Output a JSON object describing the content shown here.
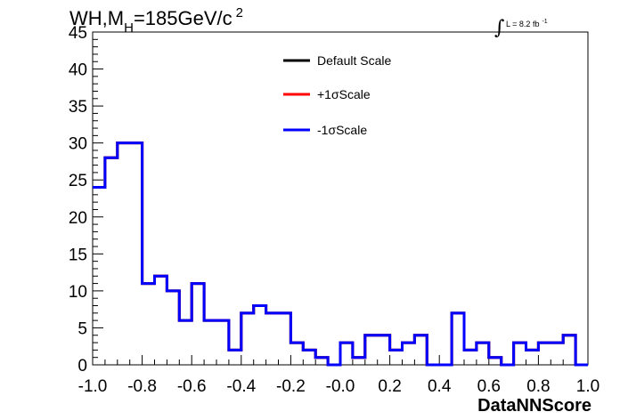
{
  "chart_data": {
    "type": "line",
    "title": {
      "main": "WH,M",
      "subscript": "H",
      "value": "=185GeV/c",
      "superscript": "2"
    },
    "luminosity": {
      "integral_symbol": "∫",
      "text": "L = 8.2 fb",
      "superscript": "-1"
    },
    "xlabel": "DataNNScore",
    "ylabel": "",
    "xlim": [
      -1.0,
      1.0
    ],
    "ylim": [
      0,
      45
    ],
    "x_ticks": [
      "-1.0",
      "-0.8",
      "-0.6",
      "-0.4",
      "-0.2",
      "-0.0",
      "0.2",
      "0.4",
      "0.6",
      "0.8",
      "1.0"
    ],
    "y_ticks": [
      "0",
      "5",
      "10",
      "15",
      "20",
      "25",
      "30",
      "35",
      "40",
      "45"
    ],
    "grid": false,
    "legend_position": "top-center",
    "bins": {
      "low": -1.0,
      "high": 1.0,
      "count": 40
    },
    "series": [
      {
        "name": "Default Scale",
        "color": "#000000",
        "values": [
          24,
          28,
          30,
          30,
          11,
          12,
          10,
          6,
          11,
          6,
          6,
          2,
          7,
          8,
          7,
          7,
          3,
          2,
          1,
          0,
          3,
          1,
          4,
          4,
          2,
          3,
          4,
          0,
          0,
          7,
          2,
          3,
          1,
          0,
          3,
          2,
          3,
          3,
          4,
          0
        ]
      },
      {
        "name": "+1σScale",
        "color": "#ff0000",
        "values": [
          24,
          28,
          30,
          30,
          11,
          12,
          10,
          6,
          11,
          6,
          6,
          2,
          7,
          8,
          7,
          7,
          3,
          2,
          1,
          0,
          3,
          1,
          4,
          4,
          2,
          3,
          4,
          0,
          0,
          7,
          2,
          3,
          1,
          0,
          3,
          2,
          3,
          3,
          4,
          0
        ]
      },
      {
        "name": "-1σScale",
        "color": "#0000ff",
        "values": [
          24,
          28,
          30,
          30,
          11,
          12,
          10,
          6,
          11,
          6,
          6,
          2,
          7,
          8,
          7,
          7,
          3,
          2,
          1,
          0,
          3,
          1,
          4,
          4,
          2,
          3,
          4,
          0,
          0,
          7,
          2,
          3,
          1,
          0,
          3,
          2,
          3,
          3,
          4,
          0
        ]
      }
    ]
  }
}
